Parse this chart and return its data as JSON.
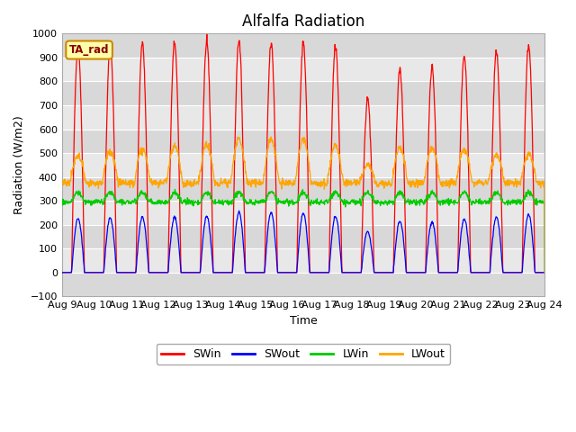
{
  "title": "Alfalfa Radiation",
  "xlabel": "Time",
  "ylabel": "Radiation (W/m2)",
  "ylim": [
    -100,
    1000
  ],
  "n_days": 15,
  "x_tick_labels": [
    "Aug 9",
    "Aug 10",
    "Aug 11",
    "Aug 12",
    "Aug 13",
    "Aug 14",
    "Aug 15",
    "Aug 16",
    "Aug 17",
    "Aug 18",
    "Aug 19",
    "Aug 20",
    "Aug 21",
    "Aug 22",
    "Aug 23",
    "Aug 24"
  ],
  "legend_entries": [
    "SWin",
    "SWout",
    "LWin",
    "LWout"
  ],
  "legend_colors": [
    "#ff0000",
    "#0000ff",
    "#00cc00",
    "#ffa500"
  ],
  "annotation_text": "TA_rad",
  "annotation_bbox_facecolor": "#ffffaa",
  "annotation_bbox_edgecolor": "#cc8800",
  "band_colors": [
    "#d8d8d8",
    "#e8e8e8"
  ],
  "title_fontsize": 12,
  "axis_label_fontsize": 9,
  "tick_fontsize": 8,
  "SWin_peaks": [
    950,
    952,
    960,
    963,
    967,
    970,
    960,
    960,
    950,
    720,
    850,
    860,
    910,
    930,
    950
  ],
  "SWout_peaks": [
    228,
    228,
    232,
    232,
    235,
    252,
    250,
    248,
    235,
    170,
    215,
    210,
    225,
    233,
    242
  ],
  "LWin_base": 295,
  "LWout_base": 375,
  "LWout_peaks": [
    490,
    505,
    515,
    530,
    535,
    560,
    555,
    555,
    530,
    450,
    520,
    520,
    515,
    495,
    495
  ]
}
